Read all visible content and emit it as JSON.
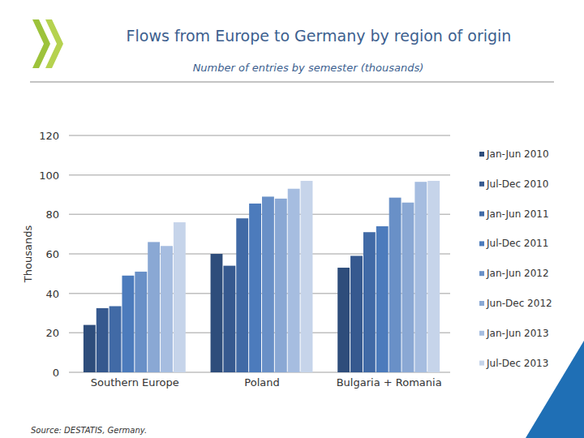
{
  "chart_data": {
    "type": "bar",
    "title": "Flows from Europe to Germany by region of origin",
    "subtitle": "Number of entries by semester (thousands)",
    "y_label": "Thousands",
    "source": "Source: DESTATIS, Germany.",
    "categories": [
      "Southern Europe",
      "Poland",
      "Bulgaria + Romania"
    ],
    "series": [
      {
        "name": "Jan-Jun 2010",
        "color": "#2e4d7b",
        "values": [
          24,
          60,
          53
        ]
      },
      {
        "name": "Jul-Dec 2010",
        "color": "#36598f",
        "values": [
          32.5,
          54,
          59
        ]
      },
      {
        "name": "Jan-Jun 2011",
        "color": "#416aa6",
        "values": [
          33.5,
          78,
          71
        ]
      },
      {
        "name": "Jul-Dec 2011",
        "color": "#4c7bbc",
        "values": [
          49,
          85.5,
          74
        ]
      },
      {
        "name": "Jan-Jun 2012",
        "color": "#6990c7",
        "values": [
          51,
          89,
          88.5
        ]
      },
      {
        "name": "Jun-Dec 2012",
        "color": "#8aa8d4",
        "values": [
          66,
          88,
          86
        ]
      },
      {
        "name": "Jan-Jun 2013",
        "color": "#a6bde0",
        "values": [
          64,
          93,
          96.5
        ]
      },
      {
        "name": "Jul-Dec 2013",
        "color": "#c6d4ea",
        "values": [
          76,
          97,
          97
        ]
      }
    ],
    "ylim": [
      0,
      120
    ],
    "yticks": [
      0,
      20,
      40,
      60,
      80,
      100,
      120
    ],
    "grid": true,
    "legend": "right"
  }
}
